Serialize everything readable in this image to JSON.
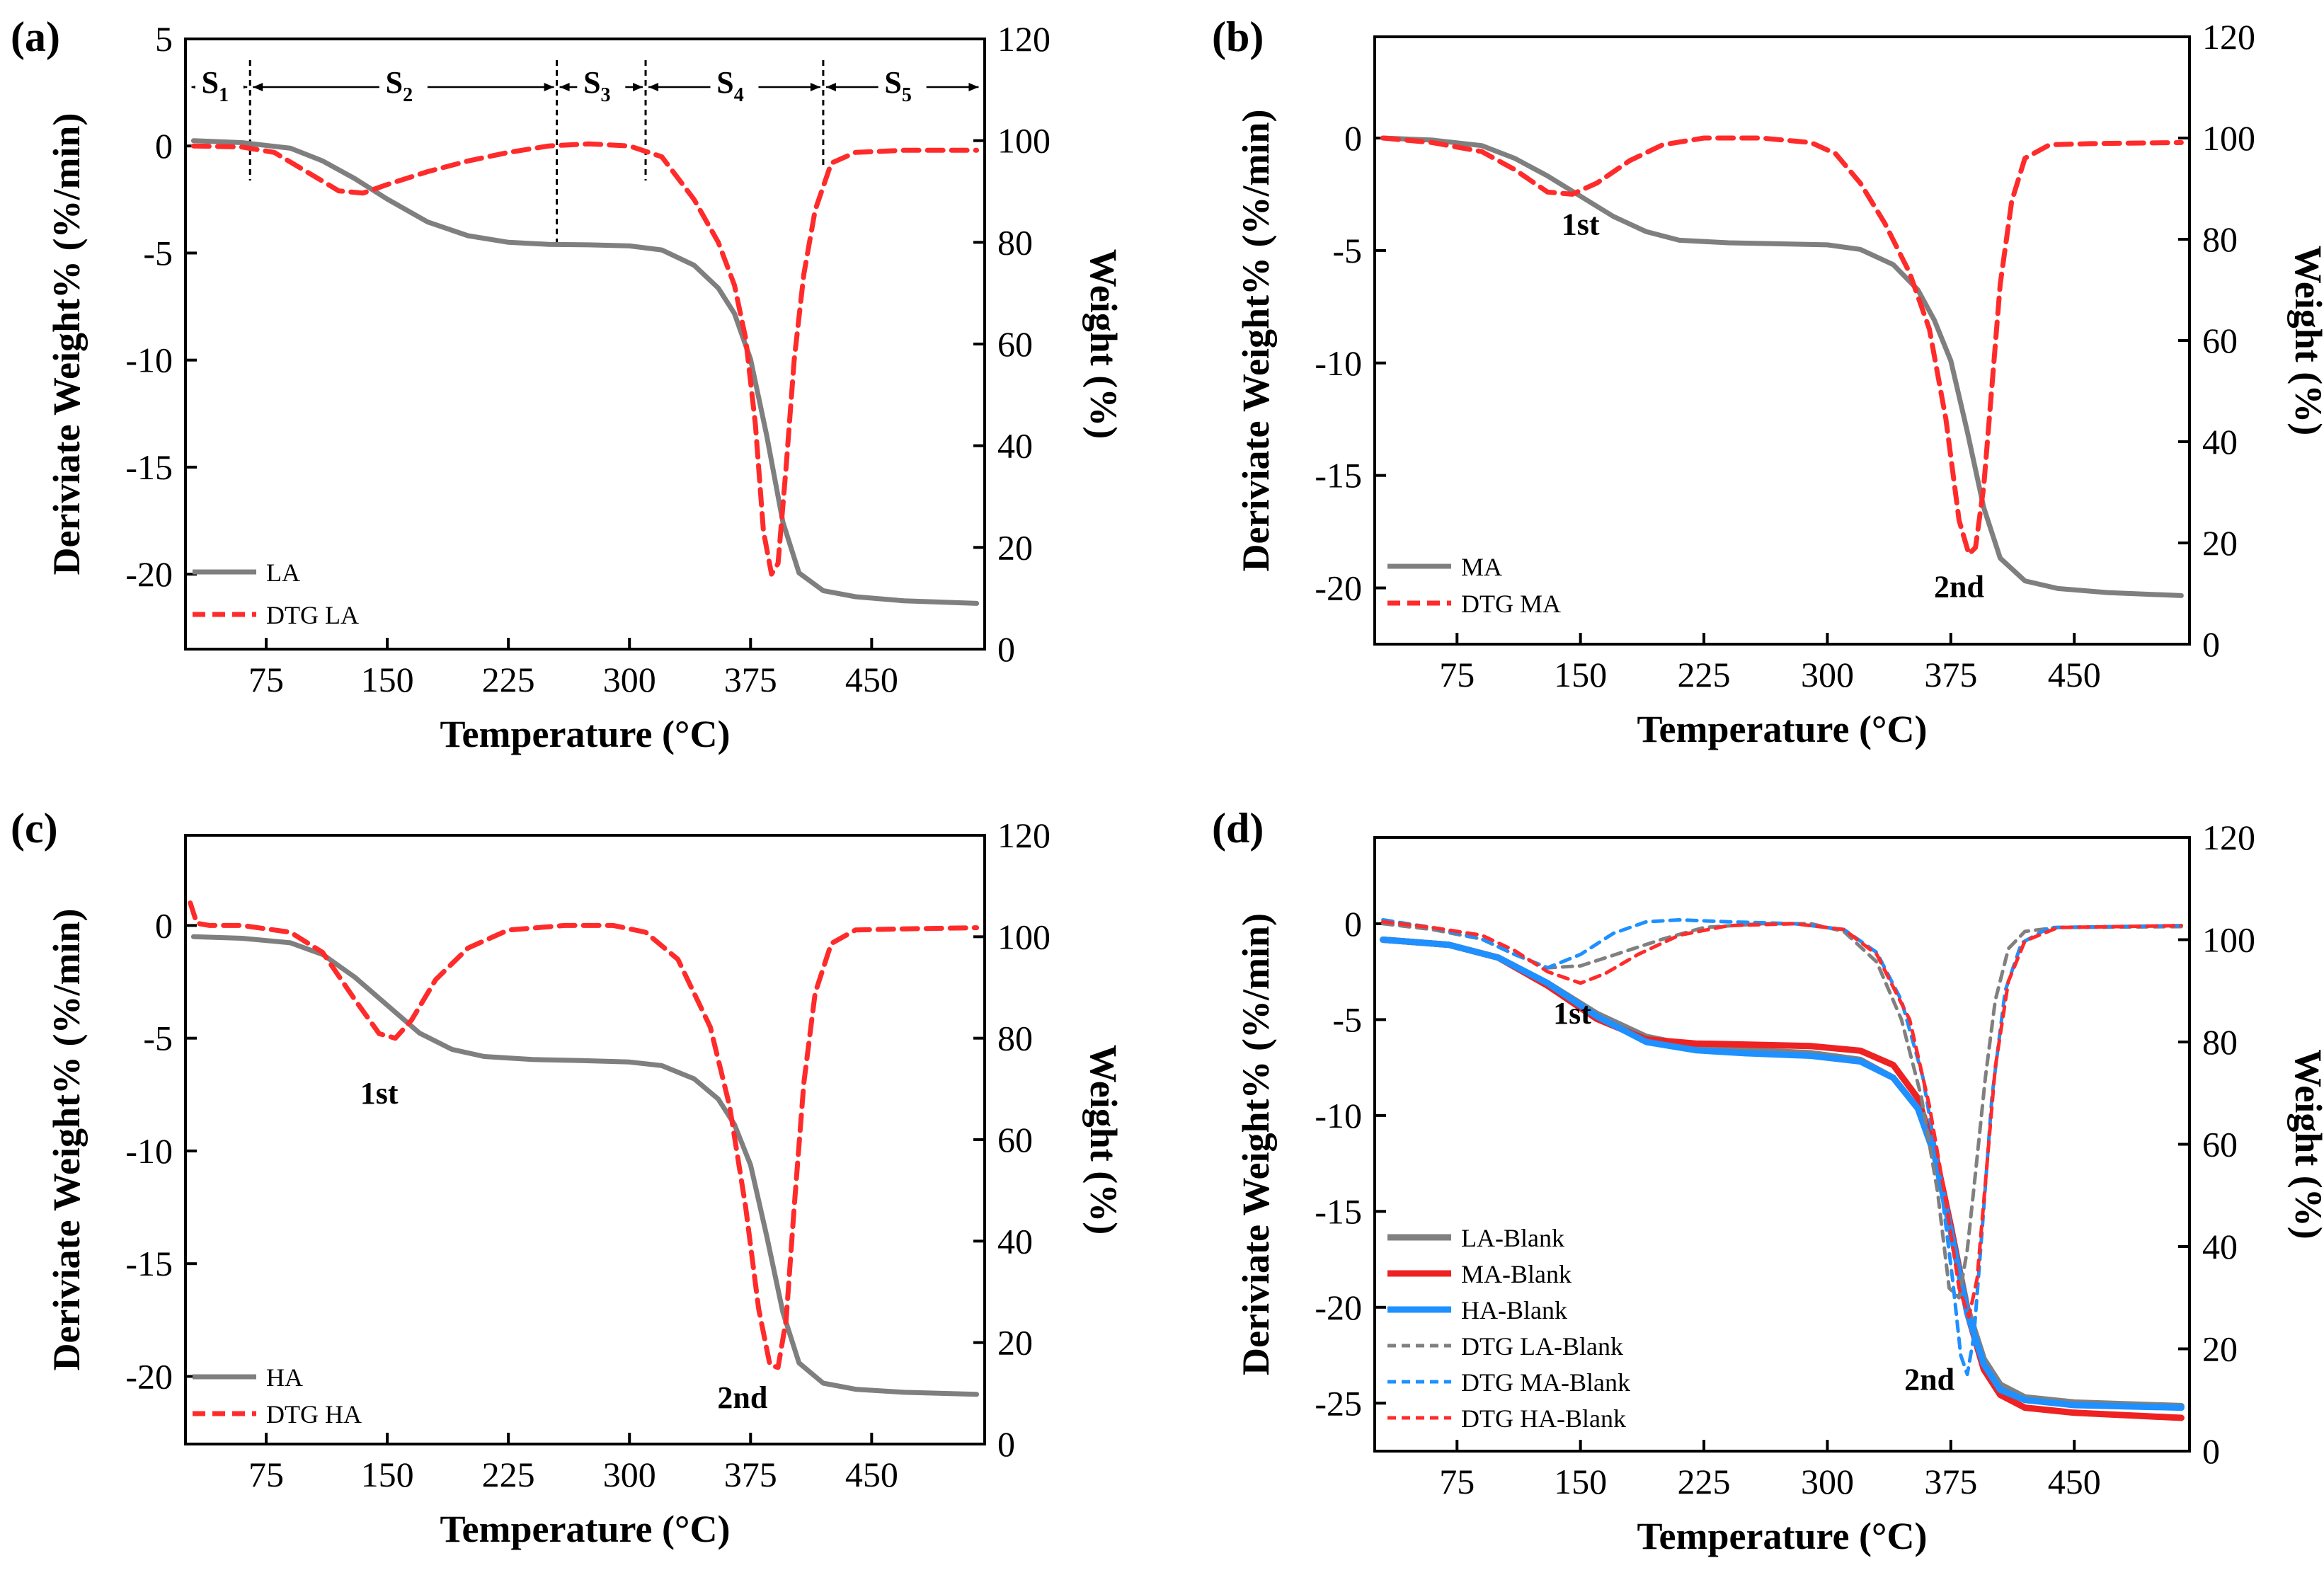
{
  "chart_data": [
    {
      "panel": "(a)",
      "type": "line",
      "xlabel": "Temperature (°C)",
      "ylabel_left": "Deriviate Weight% (%/min)",
      "ylabel_right": "Weight (%)",
      "xlim": [
        25,
        520
      ],
      "ylim_left": [
        -23.5,
        5
      ],
      "ylim_right": [
        0,
        120
      ],
      "xticks": [
        75,
        150,
        225,
        300,
        375,
        450
      ],
      "yticks_left": [
        5,
        0,
        -5,
        -10,
        -15,
        -20
      ],
      "yticks_right": [
        0,
        20,
        40,
        60,
        80,
        100,
        120
      ],
      "legend": "lower-left",
      "series": [
        {
          "name": "LA",
          "axis": "right",
          "style": "solid",
          "color": "#7f7f7f",
          "x": [
            30,
            60,
            90,
            110,
            130,
            150,
            175,
            200,
            225,
            250,
            275,
            300,
            320,
            340,
            355,
            365,
            375,
            385,
            395,
            405,
            420,
            440,
            470,
            515
          ],
          "y": [
            100,
            99.6,
            98.5,
            96,
            92.5,
            88.5,
            84,
            81.3,
            80,
            79.6,
            79.5,
            79.3,
            78.5,
            75.5,
            71,
            66,
            57,
            42,
            25,
            15,
            11.5,
            10.3,
            9.5,
            9
          ]
        },
        {
          "name": "DTG LA",
          "axis": "left",
          "style": "dashed",
          "color": "#ff2b2b",
          "x": [
            30,
            60,
            80,
            100,
            120,
            135,
            150,
            175,
            200,
            225,
            250,
            275,
            300,
            320,
            340,
            355,
            365,
            372,
            378,
            383,
            388,
            392,
            397,
            402,
            408,
            415,
            425,
            440,
            470,
            515
          ],
          "y": [
            0,
            -0.05,
            -0.3,
            -1.2,
            -2.1,
            -2.2,
            -1.8,
            -1.2,
            -0.7,
            -0.3,
            0,
            0.1,
            0,
            -0.5,
            -2.5,
            -4.5,
            -6.5,
            -9,
            -13,
            -18,
            -20,
            -19.5,
            -15,
            -10,
            -6,
            -3,
            -0.8,
            -0.3,
            -0.2,
            -0.2
          ]
        }
      ],
      "stages": [
        "S",
        "S",
        "S",
        "S",
        "S"
      ],
      "stage_subscripts": [
        "1",
        "2",
        "3",
        "4",
        "5"
      ],
      "stage_boundaries": [
        65,
        255,
        310,
        420
      ]
    },
    {
      "panel": "(b)",
      "type": "line",
      "xlabel": "Temperature (°C)",
      "ylabel_left": "Deriviate Weight% (%/min)",
      "ylabel_right": "Weight (%)",
      "xlim": [
        25,
        520
      ],
      "ylim_left": [
        -22.5,
        4.5
      ],
      "ylim_right": [
        0,
        120
      ],
      "xticks": [
        75,
        150,
        225,
        300,
        375,
        450
      ],
      "yticks_left": [
        0,
        -5,
        -10,
        -15,
        -20
      ],
      "yticks_right": [
        0,
        20,
        40,
        60,
        80,
        100,
        120
      ],
      "legend": "lower-left",
      "annotations": [
        "1st",
        "2nd"
      ],
      "series": [
        {
          "name": "MA",
          "axis": "right",
          "style": "solid",
          "color": "#7f7f7f",
          "x": [
            30,
            60,
            90,
            110,
            130,
            150,
            170,
            190,
            210,
            240,
            270,
            300,
            320,
            340,
            355,
            365,
            375,
            385,
            395,
            405,
            420,
            440,
            470,
            515
          ],
          "y": [
            100,
            99.6,
            98.5,
            96,
            92.5,
            88.5,
            84.5,
            81.5,
            79.8,
            79.3,
            79.1,
            78.9,
            78,
            75,
            70,
            64,
            56,
            42,
            27,
            17,
            12.5,
            11,
            10.2,
            9.6
          ]
        },
        {
          "name": "DTG MA",
          "axis": "left",
          "style": "dashed",
          "color": "#ff2b2b",
          "x": [
            30,
            60,
            90,
            110,
            130,
            145,
            160,
            180,
            200,
            225,
            260,
            290,
            305,
            320,
            335,
            350,
            362,
            372,
            380,
            386,
            390,
            395,
            400,
            405,
            412,
            420,
            435,
            460,
            515
          ],
          "y": [
            0,
            -0.2,
            -0.6,
            -1.4,
            -2.4,
            -2.5,
            -2,
            -1,
            -0.3,
            0,
            0,
            -0.2,
            -0.7,
            -2,
            -3.8,
            -6,
            -8.5,
            -12.5,
            -17,
            -18.5,
            -18.2,
            -15.5,
            -11,
            -6.5,
            -2.8,
            -0.9,
            -0.3,
            -0.25,
            -0.2
          ]
        }
      ]
    },
    {
      "panel": "(c)",
      "type": "line",
      "xlabel": "Temperature (°C)",
      "ylabel_left": "Deriviate Weight% (%/min)",
      "ylabel_right": "Weight (%)",
      "xlim": [
        25,
        520
      ],
      "ylim_left": [
        -23,
        4
      ],
      "ylim_right": [
        0,
        120
      ],
      "xticks": [
        75,
        150,
        225,
        300,
        375,
        450
      ],
      "yticks_left": [
        0,
        -5,
        -10,
        -15,
        -20
      ],
      "yticks_right": [
        0,
        20,
        40,
        60,
        80,
        100,
        120
      ],
      "legend": "lower-left",
      "annotations": [
        "1st",
        "2nd"
      ],
      "series": [
        {
          "name": "HA",
          "axis": "right",
          "style": "solid",
          "color": "#7f7f7f",
          "x": [
            30,
            60,
            90,
            110,
            130,
            150,
            170,
            190,
            210,
            240,
            270,
            300,
            320,
            340,
            355,
            365,
            375,
            385,
            395,
            405,
            420,
            440,
            470,
            515
          ],
          "y": [
            100,
            99.7,
            98.8,
            96.5,
            92,
            86.5,
            81,
            77.8,
            76.4,
            75.8,
            75.6,
            75.3,
            74.6,
            72,
            68,
            63,
            55,
            41,
            26,
            16,
            12,
            10.8,
            10.2,
            9.8
          ]
        },
        {
          "name": "DTG HA",
          "axis": "left",
          "style": "dashed",
          "color": "#ff2b2b",
          "x": [
            28,
            32,
            40,
            60,
            90,
            110,
            130,
            145,
            155,
            165,
            180,
            200,
            225,
            260,
            290,
            310,
            330,
            350,
            362,
            372,
            380,
            387,
            392,
            397,
            402,
            408,
            415,
            425,
            440,
            470,
            515
          ],
          "y": [
            1,
            0.1,
            0,
            0,
            -0.3,
            -1.2,
            -3.3,
            -4.8,
            -5,
            -4.2,
            -2.4,
            -1,
            -0.2,
            0,
            0,
            -0.3,
            -1.5,
            -4.5,
            -8,
            -12.5,
            -17,
            -19.5,
            -19.6,
            -17.5,
            -12.5,
            -7,
            -3,
            -0.8,
            -0.2,
            -0.15,
            -0.1
          ]
        }
      ]
    },
    {
      "panel": "(d)",
      "type": "line",
      "xlabel": "Temperature (°C)",
      "ylabel_left": "Deriviate Weight% (%/min)",
      "ylabel_right": "Weight (%)",
      "xlim": [
        25,
        520
      ],
      "ylim_left": [
        -27.5,
        4.5
      ],
      "ylim_right": [
        0,
        120
      ],
      "xticks": [
        75,
        150,
        225,
        300,
        375,
        450
      ],
      "yticks_left": [
        0,
        -5,
        -10,
        -15,
        -20,
        -25
      ],
      "yticks_right": [
        0,
        20,
        40,
        60,
        80,
        100,
        120
      ],
      "legend": "lower-left",
      "annotations": [
        "1st",
        "2nd"
      ],
      "series": [
        {
          "name": "LA-Blank",
          "axis": "right",
          "style": "solid",
          "color": "#808080",
          "x": [
            30,
            70,
            100,
            130,
            160,
            190,
            220,
            250,
            290,
            320,
            340,
            355,
            365,
            375,
            385,
            395,
            405,
            420,
            450,
            515
          ],
          "y": [
            100,
            99,
            96.5,
            91.5,
            85.5,
            81,
            79,
            78.4,
            77.8,
            76.5,
            73,
            67,
            58,
            44,
            28,
            18,
            13,
            10.5,
            9.5,
            8.8
          ]
        },
        {
          "name": "MA-Blank",
          "axis": "right",
          "style": "solid",
          "color": "#ee2222",
          "x": [
            30,
            70,
            100,
            130,
            160,
            190,
            220,
            250,
            290,
            320,
            340,
            355,
            365,
            375,
            385,
            395,
            405,
            420,
            450,
            515
          ],
          "y": [
            100,
            99,
            96.5,
            91,
            84.5,
            80.5,
            79.7,
            79.5,
            79.2,
            78.3,
            75.5,
            69,
            59,
            44,
            27,
            16,
            11,
            8.5,
            7.5,
            6.5
          ]
        },
        {
          "name": "HA-Blank",
          "axis": "right",
          "style": "solid",
          "color": "#1e90ff",
          "x": [
            30,
            70,
            100,
            130,
            160,
            190,
            220,
            250,
            290,
            320,
            340,
            355,
            365,
            375,
            385,
            395,
            405,
            420,
            450,
            515
          ],
          "y": [
            100,
            99,
            96.5,
            91.5,
            85,
            80,
            78.4,
            77.8,
            77.3,
            76.2,
            73,
            67,
            58,
            43,
            27,
            17,
            12,
            10,
            9,
            8.5
          ]
        },
        {
          "name": "DTG LA-Blank",
          "axis": "left",
          "style": "dashed",
          "color": "#808080",
          "x": [
            30,
            60,
            90,
            110,
            130,
            150,
            175,
            200,
            225,
            260,
            290,
            310,
            330,
            345,
            357,
            367,
            374,
            380,
            385,
            390,
            396,
            402,
            410,
            420,
            440,
            515
          ],
          "y": [
            0,
            -0.3,
            -0.8,
            -1.6,
            -2.3,
            -2.2,
            -1.5,
            -0.8,
            -0.2,
            0,
            0,
            -0.4,
            -2,
            -5,
            -9,
            -14,
            -19,
            -19.5,
            -17,
            -13,
            -8,
            -4,
            -1.3,
            -0.4,
            -0.2,
            -0.15
          ]
        },
        {
          "name": "DTG MA-Blank",
          "axis": "left",
          "style": "dashed",
          "color": "#1e90ff",
          "x": [
            30,
            60,
            90,
            110,
            130,
            150,
            170,
            190,
            210,
            240,
            280,
            310,
            330,
            345,
            358,
            368,
            376,
            381,
            385,
            389,
            394,
            400,
            408,
            418,
            435,
            515
          ],
          "y": [
            0.2,
            -0.2,
            -0.8,
            -1.6,
            -2.3,
            -1.6,
            -0.5,
            0.1,
            0.2,
            0.1,
            0,
            -0.3,
            -1.5,
            -4,
            -8,
            -13,
            -18.5,
            -22.5,
            -23.5,
            -21.5,
            -16,
            -9,
            -3.5,
            -1,
            -0.2,
            -0.1
          ]
        },
        {
          "name": "DTG HA-Blank",
          "axis": "left",
          "style": "dashed",
          "color": "#ff2b2b",
          "x": [
            30,
            60,
            90,
            110,
            130,
            150,
            165,
            185,
            210,
            240,
            280,
            310,
            330,
            350,
            362,
            372,
            380,
            386,
            391,
            396,
            402,
            410,
            420,
            440,
            515
          ],
          "y": [
            0.1,
            -0.2,
            -0.6,
            -1.4,
            -2.5,
            -3.1,
            -2.6,
            -1.6,
            -0.6,
            -0.1,
            0,
            -0.3,
            -1.6,
            -5,
            -9.5,
            -14.5,
            -19,
            -20.5,
            -18.5,
            -13.5,
            -7.5,
            -3,
            -0.9,
            -0.2,
            -0.1
          ]
        }
      ]
    }
  ]
}
